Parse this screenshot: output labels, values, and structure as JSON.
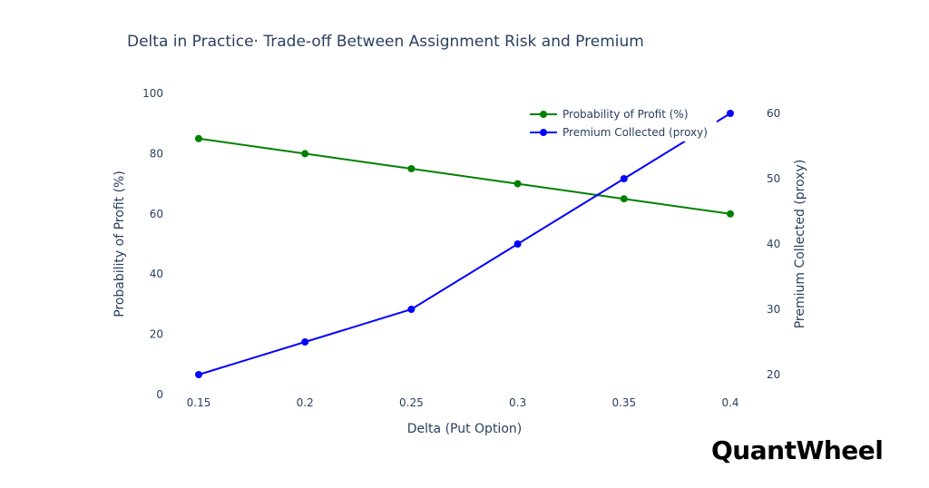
{
  "chart_data": {
    "type": "line",
    "title": "Delta in Practice· Trade-off Between Assignment Risk and Premium",
    "xlabel": "Delta (Put Option)",
    "ylabel": "Probability of Profit (%)",
    "y2label": "Premium Collected (proxy)",
    "x": [
      0.15,
      0.2,
      0.25,
      0.3,
      0.35,
      0.4
    ],
    "x_tick_labels": [
      "0.15",
      "0.2",
      "0.25",
      "0.3",
      "0.35",
      "0.4"
    ],
    "y_ticks": [
      0,
      20,
      40,
      60,
      80,
      100
    ],
    "y2_ticks": [
      20,
      30,
      40,
      50,
      60
    ],
    "ylim": [
      0,
      100
    ],
    "y2lim": [
      17,
      63
    ],
    "grid": false,
    "legend_position": "top-right",
    "series": [
      {
        "name": "Probability of Profit (%)",
        "axis": "left",
        "color": "#008000",
        "values": [
          85,
          80,
          75,
          70,
          65,
          60
        ]
      },
      {
        "name": "Premium Collected (proxy)",
        "axis": "right",
        "color": "#0000ff",
        "values": [
          20,
          25,
          30,
          40,
          50,
          60
        ]
      }
    ]
  },
  "brand": {
    "name": "QuantWheel"
  }
}
